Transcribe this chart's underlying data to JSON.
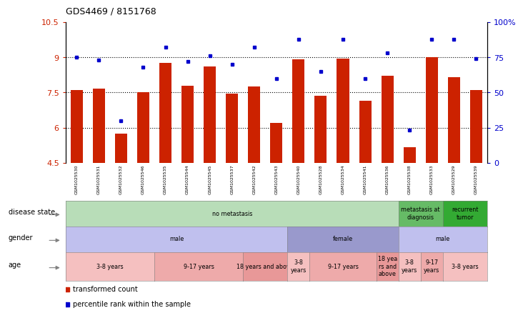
{
  "title": "GDS4469 / 8151768",
  "samples": [
    "GSM1025530",
    "GSM1025531",
    "GSM1025532",
    "GSM1025546",
    "GSM1025535",
    "GSM1025544",
    "GSM1025545",
    "GSM1025537",
    "GSM1025542",
    "GSM1025543",
    "GSM1025540",
    "GSM1025528",
    "GSM1025534",
    "GSM1025541",
    "GSM1025536",
    "GSM1025538",
    "GSM1025533",
    "GSM1025529",
    "GSM1025539"
  ],
  "bar_values": [
    7.6,
    7.65,
    5.75,
    7.5,
    8.75,
    7.8,
    8.6,
    7.45,
    7.75,
    6.2,
    8.9,
    7.35,
    8.95,
    7.15,
    8.2,
    5.15,
    9.0,
    8.15,
    7.6
  ],
  "dot_values": [
    75,
    73,
    30,
    68,
    82,
    72,
    76,
    70,
    82,
    60,
    88,
    65,
    88,
    60,
    78,
    23,
    88,
    88,
    74
  ],
  "ylim_left": [
    4.5,
    10.5
  ],
  "ylim_right": [
    0,
    100
  ],
  "yticks_left": [
    4.5,
    6.0,
    7.5,
    9.0,
    10.5
  ],
  "ytick_labels_left": [
    "4.5",
    "6",
    "7.5",
    "9",
    "10.5"
  ],
  "yticks_right": [
    0,
    25,
    50,
    75,
    100
  ],
  "ytick_labels_right": [
    "0",
    "25",
    "50",
    "75",
    "100%"
  ],
  "hlines": [
    6.0,
    7.5,
    9.0
  ],
  "bar_color": "#cc2200",
  "dot_color": "#0000cc",
  "disease_state_groups": [
    {
      "label": "no metastasis",
      "start": 0,
      "end": 15,
      "color": "#b8ddb8"
    },
    {
      "label": "metastasis at\ndiagnosis",
      "start": 15,
      "end": 17,
      "color": "#66bb66"
    },
    {
      "label": "recurrent\ntumor",
      "start": 17,
      "end": 19,
      "color": "#33aa33"
    }
  ],
  "gender_groups": [
    {
      "label": "male",
      "start": 0,
      "end": 10,
      "color": "#c0c0ee"
    },
    {
      "label": "female",
      "start": 10,
      "end": 15,
      "color": "#9999cc"
    },
    {
      "label": "male",
      "start": 15,
      "end": 19,
      "color": "#c0c0ee"
    }
  ],
  "age_groups": [
    {
      "label": "3-8 years",
      "start": 0,
      "end": 4,
      "color": "#f5c0c0"
    },
    {
      "label": "9-17 years",
      "start": 4,
      "end": 8,
      "color": "#eeaaaa"
    },
    {
      "label": "18 years and above",
      "start": 8,
      "end": 10,
      "color": "#e89898"
    },
    {
      "label": "3-8\nyears",
      "start": 10,
      "end": 11,
      "color": "#f5c0c0"
    },
    {
      "label": "9-17 years",
      "start": 11,
      "end": 14,
      "color": "#eeaaaa"
    },
    {
      "label": "18 yea\nrs and\nabove",
      "start": 14,
      "end": 15,
      "color": "#e89898"
    },
    {
      "label": "3-8\nyears",
      "start": 15,
      "end": 16,
      "color": "#f5c0c0"
    },
    {
      "label": "9-17\nyears",
      "start": 16,
      "end": 17,
      "color": "#eeaaaa"
    },
    {
      "label": "3-8 years",
      "start": 17,
      "end": 19,
      "color": "#f5c0c0"
    }
  ],
  "row_labels": [
    "disease state",
    "gender",
    "age"
  ],
  "legend_items": [
    {
      "label": "  transformed count",
      "color": "#cc2200"
    },
    {
      "label": "  percentile rank within the sample",
      "color": "#0000cc"
    }
  ],
  "xtick_bg_color": "#dddddd"
}
